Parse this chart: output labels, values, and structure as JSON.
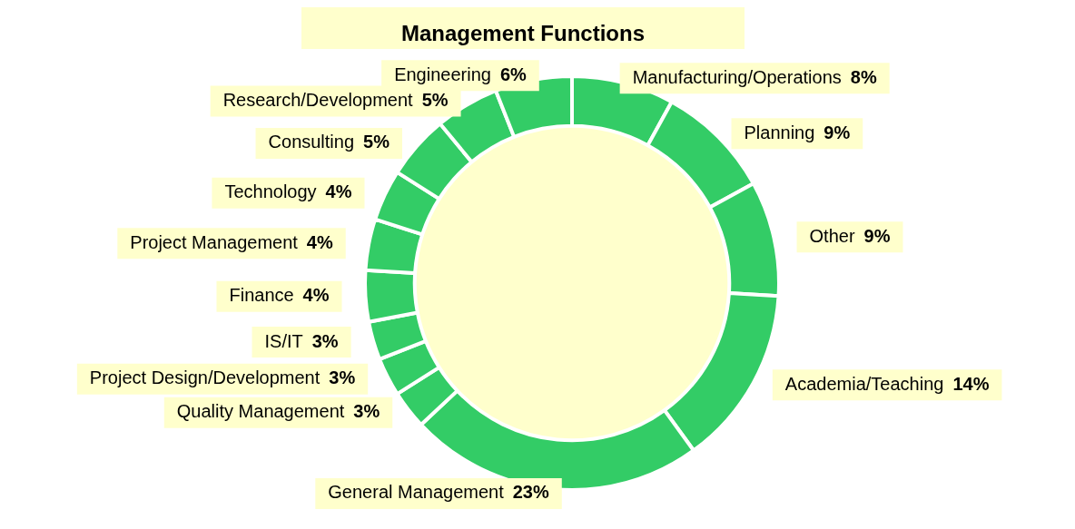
{
  "chart_data": {
    "type": "donut",
    "title": "Management Functions",
    "categories": [
      "Manufacturing/Operations",
      "Planning",
      "Other",
      "Academia/Teaching",
      "General Management",
      "Quality Management",
      "Project Design/Development",
      "IS/IT",
      "Finance",
      "Project Management",
      "Technology",
      "Consulting",
      "Research/Development",
      "Engineering"
    ],
    "values": [
      8,
      9,
      9,
      14,
      23,
      3,
      3,
      3,
      4,
      4,
      4,
      5,
      5,
      6
    ],
    "value_labels": [
      "8%",
      "9%",
      "9%",
      "14%",
      "23%",
      "3%",
      "3%",
      "3%",
      "4%",
      "4%",
      "4%",
      "5%",
      "5%",
      "6%"
    ],
    "color": "#33cc66",
    "legend": false
  }
}
